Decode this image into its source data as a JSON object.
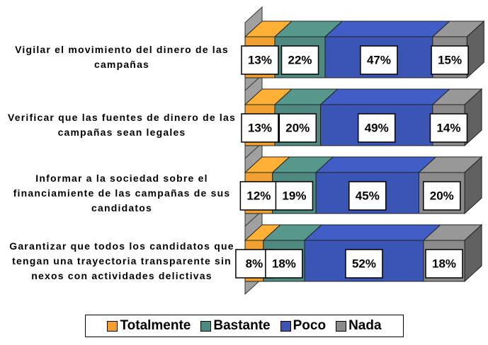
{
  "chart_data": {
    "type": "stacked-bar-3d",
    "categories": [
      "Vigilar el movimiento del dinero de las campañas",
      "Verificar que las fuentes de dinero de las campañas sean legales",
      "Informar a la sociedad sobre el financiamiente de las campañas de sus candidatos",
      "Garantizar que todos los candidatos que tengan una trayectoria transparente sin nexos con actividades delictivas"
    ],
    "series": [
      {
        "name": "Totalmente",
        "color": "#f0a030",
        "values": [
          13,
          13,
          12,
          8
        ],
        "value_labels": [
          "13%",
          "13%",
          "12%",
          "8%"
        ]
      },
      {
        "name": "Bastante",
        "color": "#4f8a80",
        "values": [
          22,
          20,
          19,
          18
        ],
        "value_labels": [
          "22%",
          "20%",
          "19%",
          "18%"
        ]
      },
      {
        "name": "Poco",
        "color": "#3a55b4",
        "values": [
          47,
          49,
          45,
          52
        ],
        "value_labels": [
          "47%",
          "49%",
          "45%",
          "52%"
        ]
      },
      {
        "name": "Nada",
        "color": "#8a8a8a",
        "values": [
          15,
          14,
          20,
          18
        ],
        "value_labels": [
          "15%",
          "14%",
          "20%",
          "18%"
        ]
      }
    ],
    "xlim": [
      0,
      100
    ]
  }
}
